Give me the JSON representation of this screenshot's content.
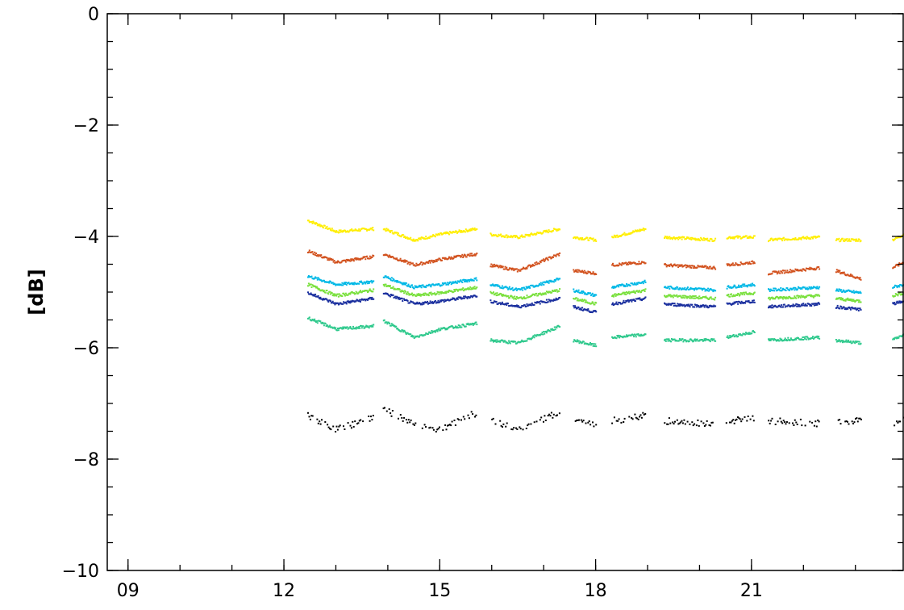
{
  "chart_data": {
    "type": "scatter",
    "title": "",
    "xlabel": "",
    "ylabel": "[dB]",
    "xlim": [
      8.6,
      23.92
    ],
    "ylim": [
      -10,
      0
    ],
    "x_ticks": [
      {
        "value": 9,
        "label": "09"
      },
      {
        "value": 12,
        "label": "12"
      },
      {
        "value": 15,
        "label": "15"
      },
      {
        "value": 18,
        "label": "18"
      },
      {
        "value": 21,
        "label": "21"
      }
    ],
    "y_ticks": [
      {
        "value": 0,
        "label": "0"
      },
      {
        "value": -2,
        "label": "−2"
      },
      {
        "value": -4,
        "label": "−4"
      },
      {
        "value": -6,
        "label": "−6"
      },
      {
        "value": -8,
        "label": "−8"
      },
      {
        "value": -10,
        "label": "−10"
      }
    ],
    "grid": false,
    "legend": "none",
    "segments": [
      [
        12.45,
        13.72
      ],
      [
        13.9,
        15.7
      ],
      [
        15.95,
        17.3
      ],
      [
        17.55,
        18.0
      ],
      [
        18.3,
        18.95
      ],
      [
        19.3,
        20.3
      ],
      [
        20.5,
        21.05
      ],
      [
        21.3,
        22.3
      ],
      [
        22.6,
        23.1
      ],
      [
        23.7,
        23.92
      ]
    ],
    "series": [
      {
        "color": "#ffee00",
        "values": [
          [
            12.45,
            -3.7
          ],
          [
            13.0,
            -3.9
          ],
          [
            13.7,
            -3.85
          ],
          [
            13.9,
            -3.85
          ],
          [
            14.5,
            -4.05
          ],
          [
            15.0,
            -3.95
          ],
          [
            15.7,
            -3.85
          ],
          [
            15.95,
            -3.95
          ],
          [
            16.5,
            -4.0
          ],
          [
            17.3,
            -3.85
          ],
          [
            17.55,
            -4.0
          ],
          [
            18.0,
            -4.05
          ],
          [
            18.3,
            -4.0
          ],
          [
            18.95,
            -3.85
          ],
          [
            19.3,
            -4.0
          ],
          [
            20.3,
            -4.05
          ],
          [
            20.5,
            -4.0
          ],
          [
            21.05,
            -4.0
          ],
          [
            21.3,
            -4.05
          ],
          [
            22.3,
            -4.0
          ],
          [
            22.6,
            -4.05
          ],
          [
            23.1,
            -4.05
          ],
          [
            23.7,
            -4.05
          ],
          [
            23.92,
            -3.95
          ]
        ]
      },
      {
        "color": "#d2521e",
        "values": [
          [
            12.45,
            -4.25
          ],
          [
            13.0,
            -4.45
          ],
          [
            13.7,
            -4.35
          ],
          [
            13.9,
            -4.3
          ],
          [
            14.5,
            -4.5
          ],
          [
            15.0,
            -4.4
          ],
          [
            15.7,
            -4.3
          ],
          [
            15.95,
            -4.5
          ],
          [
            16.5,
            -4.6
          ],
          [
            17.3,
            -4.3
          ],
          [
            17.55,
            -4.6
          ],
          [
            18.0,
            -4.65
          ],
          [
            18.3,
            -4.5
          ],
          [
            18.95,
            -4.45
          ],
          [
            19.3,
            -4.5
          ],
          [
            20.3,
            -4.55
          ],
          [
            20.5,
            -4.5
          ],
          [
            21.05,
            -4.45
          ],
          [
            21.3,
            -4.65
          ],
          [
            22.3,
            -4.55
          ],
          [
            22.6,
            -4.6
          ],
          [
            23.1,
            -4.75
          ],
          [
            23.7,
            -4.55
          ],
          [
            23.92,
            -4.45
          ]
        ]
      },
      {
        "color": "#00b8e6",
        "values": [
          [
            12.45,
            -4.7
          ],
          [
            13.0,
            -4.85
          ],
          [
            13.7,
            -4.8
          ],
          [
            13.9,
            -4.7
          ],
          [
            14.5,
            -4.9
          ],
          [
            15.0,
            -4.85
          ],
          [
            15.7,
            -4.75
          ],
          [
            15.95,
            -4.85
          ],
          [
            16.5,
            -4.95
          ],
          [
            17.3,
            -4.75
          ],
          [
            17.55,
            -4.95
          ],
          [
            18.0,
            -5.05
          ],
          [
            18.3,
            -4.9
          ],
          [
            18.95,
            -4.8
          ],
          [
            19.3,
            -4.9
          ],
          [
            20.3,
            -4.95
          ],
          [
            20.5,
            -4.9
          ],
          [
            21.05,
            -4.85
          ],
          [
            21.3,
            -4.95
          ],
          [
            22.3,
            -4.9
          ],
          [
            22.6,
            -4.95
          ],
          [
            23.1,
            -5.0
          ],
          [
            23.7,
            -4.9
          ],
          [
            23.92,
            -4.85
          ]
        ]
      },
      {
        "color": "#79e03c",
        "values": [
          [
            12.45,
            -4.85
          ],
          [
            13.0,
            -5.05
          ],
          [
            13.7,
            -4.95
          ],
          [
            13.9,
            -4.85
          ],
          [
            14.5,
            -5.05
          ],
          [
            15.0,
            -5.0
          ],
          [
            15.7,
            -4.9
          ],
          [
            15.95,
            -5.0
          ],
          [
            16.5,
            -5.1
          ],
          [
            17.3,
            -4.95
          ],
          [
            17.55,
            -5.1
          ],
          [
            18.0,
            -5.2
          ],
          [
            18.3,
            -5.05
          ],
          [
            18.95,
            -4.95
          ],
          [
            19.3,
            -5.05
          ],
          [
            20.3,
            -5.1
          ],
          [
            20.5,
            -5.05
          ],
          [
            21.05,
            -5.0
          ],
          [
            21.3,
            -5.1
          ],
          [
            22.3,
            -5.05
          ],
          [
            22.6,
            -5.1
          ],
          [
            23.1,
            -5.15
          ],
          [
            23.7,
            -5.05
          ],
          [
            23.92,
            -5.0
          ]
        ]
      },
      {
        "color": "#1a2f9e",
        "values": [
          [
            12.45,
            -5.0
          ],
          [
            13.0,
            -5.2
          ],
          [
            13.7,
            -5.1
          ],
          [
            13.9,
            -5.0
          ],
          [
            14.5,
            -5.2
          ],
          [
            15.0,
            -5.15
          ],
          [
            15.7,
            -5.05
          ],
          [
            15.95,
            -5.15
          ],
          [
            16.5,
            -5.25
          ],
          [
            17.3,
            -5.1
          ],
          [
            17.55,
            -5.25
          ],
          [
            18.0,
            -5.35
          ],
          [
            18.3,
            -5.2
          ],
          [
            18.95,
            -5.1
          ],
          [
            19.3,
            -5.2
          ],
          [
            20.3,
            -5.25
          ],
          [
            20.5,
            -5.2
          ],
          [
            21.05,
            -5.15
          ],
          [
            21.3,
            -5.25
          ],
          [
            22.3,
            -5.2
          ],
          [
            22.6,
            -5.25
          ],
          [
            23.1,
            -5.3
          ],
          [
            23.7,
            -5.2
          ],
          [
            23.92,
            -5.15
          ]
        ]
      },
      {
        "color": "#2ec98c",
        "values": [
          [
            12.45,
            -5.45
          ],
          [
            13.0,
            -5.65
          ],
          [
            13.7,
            -5.6
          ],
          [
            13.9,
            -5.5
          ],
          [
            14.5,
            -5.8
          ],
          [
            15.0,
            -5.65
          ],
          [
            15.7,
            -5.55
          ],
          [
            15.95,
            -5.85
          ],
          [
            16.5,
            -5.9
          ],
          [
            17.3,
            -5.6
          ],
          [
            17.55,
            -5.85
          ],
          [
            18.0,
            -5.95
          ],
          [
            18.3,
            -5.8
          ],
          [
            18.95,
            -5.75
          ],
          [
            19.3,
            -5.85
          ],
          [
            20.3,
            -5.85
          ],
          [
            20.5,
            -5.8
          ],
          [
            21.05,
            -5.7
          ],
          [
            21.3,
            -5.85
          ],
          [
            22.3,
            -5.8
          ],
          [
            22.6,
            -5.85
          ],
          [
            23.1,
            -5.9
          ],
          [
            23.7,
            -5.85
          ],
          [
            23.92,
            -5.75
          ]
        ]
      },
      {
        "color": "#000000",
        "values": [
          [
            12.45,
            -7.2
          ],
          [
            13.0,
            -7.45
          ],
          [
            13.7,
            -7.25
          ],
          [
            13.9,
            -7.1
          ],
          [
            14.5,
            -7.35
          ],
          [
            15.0,
            -7.45
          ],
          [
            15.7,
            -7.15
          ],
          [
            15.95,
            -7.3
          ],
          [
            16.5,
            -7.45
          ],
          [
            17.3,
            -7.15
          ],
          [
            17.55,
            -7.25
          ],
          [
            18.0,
            -7.35
          ],
          [
            18.3,
            -7.3
          ],
          [
            18.95,
            -7.2
          ],
          [
            19.3,
            -7.3
          ],
          [
            20.3,
            -7.35
          ],
          [
            20.5,
            -7.3
          ],
          [
            21.05,
            -7.25
          ],
          [
            21.3,
            -7.3
          ],
          [
            22.3,
            -7.35
          ],
          [
            22.6,
            -7.3
          ],
          [
            23.1,
            -7.3
          ],
          [
            23.7,
            -7.35
          ],
          [
            23.92,
            -7.25
          ]
        ]
      }
    ]
  }
}
